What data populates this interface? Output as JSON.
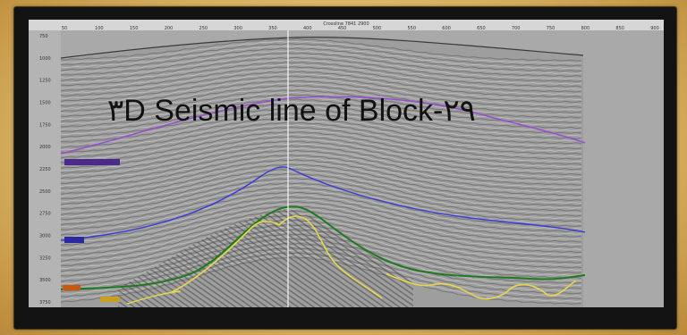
{
  "slide": {
    "title": "٣D Seismic line of Block-٢٩"
  },
  "section": {
    "header_label": "Crossline 7841 2900",
    "trace_labels": [
      "50",
      "100",
      "150",
      "200",
      "250",
      "300",
      "350",
      "400",
      "450",
      "500",
      "550",
      "600",
      "650",
      "700",
      "750",
      "800",
      "850",
      "900"
    ],
    "time_labels": [
      "750",
      "1000",
      "1250",
      "1500",
      "1750",
      "2000",
      "2250",
      "2500",
      "2750",
      "3000",
      "3250",
      "3500",
      "3750"
    ],
    "horizon_colors": {
      "top": "#3a3a3a",
      "purple": "#9a4fd0",
      "blue": "#3a3ad8",
      "green": "#1f7a1f",
      "yellow": "#e6d84a",
      "orange": "#e07a1a"
    },
    "well_marker_colors": [
      "#4a2a8a",
      "#2a2aa0",
      "#c85a10",
      "#c8a020"
    ]
  }
}
